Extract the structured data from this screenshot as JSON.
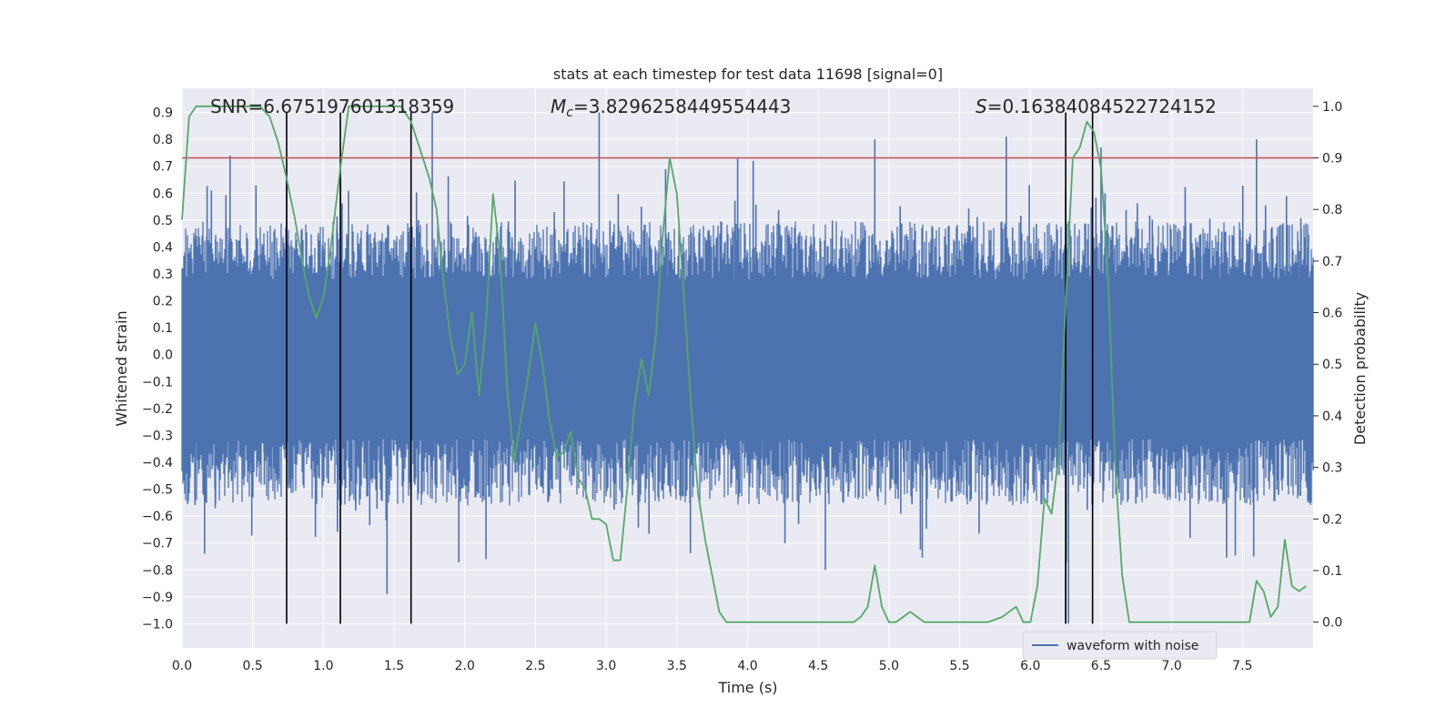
{
  "chart_data": {
    "type": "line",
    "title": "stats at each timestep for test data 11698 [signal=0]",
    "xlabel": "Time (s)",
    "ylabel": "Whitened strain",
    "y2label": "Detection probability",
    "xlim": [
      0.0,
      8.0
    ],
    "ylim": [
      -1.09,
      0.99
    ],
    "y2lim": [
      -0.05,
      1.035
    ],
    "xticks": [
      "0.0",
      "0.5",
      "1.0",
      "1.5",
      "2.0",
      "2.5",
      "3.0",
      "3.5",
      "4.0",
      "4.5",
      "5.0",
      "5.5",
      "6.0",
      "6.5",
      "7.0",
      "7.5"
    ],
    "yticks": [
      "0.9",
      "0.8",
      "0.7",
      "0.6",
      "0.5",
      "0.4",
      "0.3",
      "0.2",
      "0.1",
      "0.0",
      "−0.1",
      "−0.2",
      "−0.3",
      "−0.4",
      "−0.5",
      "−0.6",
      "−0.7",
      "−0.8",
      "−0.9",
      "−1.0"
    ],
    "y2ticks": [
      "1.0",
      "0.9",
      "0.8",
      "0.7",
      "0.6",
      "0.5",
      "0.4",
      "0.3",
      "0.2",
      "0.1",
      "0.0"
    ],
    "grid": true,
    "legend": {
      "placement": "lower-right",
      "entries": [
        "waveform with noise"
      ]
    },
    "annotations": {
      "snr": "SNR=6.675197601318359",
      "mc_symbol": "M",
      "mc_sub": "c",
      "mc_value": "=3.8296258449554443",
      "s_symbol": "S",
      "s_value": "=0.16384084522724152"
    },
    "threshold": {
      "value": 0.9,
      "axis": "y2",
      "color": "#c44e52"
    },
    "vertical_lines": [
      0.74,
      1.12,
      1.62,
      6.25,
      6.44
    ],
    "horizontal_white_lines": [
      0.7,
      0.6,
      0.5,
      0.4
    ],
    "series": [
      {
        "name": "waveform with noise",
        "axis": "y",
        "color": "#4c72b0",
        "noise_envelope": {
          "typical": 0.33,
          "max_positive": 0.9,
          "min_negative": -1.0
        },
        "peaks": [
          [
            0.34,
            0.74
          ],
          [
            0.74,
            0.65
          ],
          [
            1.62,
            0.9
          ],
          [
            1.77,
            0.9
          ],
          [
            2.95,
            0.9
          ],
          [
            3.42,
            0.69
          ],
          [
            3.93,
            0.73
          ],
          [
            4.04,
            0.72
          ],
          [
            4.9,
            0.8
          ],
          [
            5.83,
            0.81
          ],
          [
            6.5,
            0.77
          ],
          [
            7.6,
            0.8
          ],
          [
            1.45,
            -0.89
          ],
          [
            6.25,
            -1.0
          ],
          [
            6.27,
            -1.0
          ],
          [
            7.58,
            -0.75
          ],
          [
            4.55,
            -0.8
          ],
          [
            2.15,
            -0.76
          ]
        ]
      },
      {
        "name": "",
        "axis": "y2",
        "color": "#55a868",
        "x": [
          0.0,
          0.05,
          0.1,
          0.2,
          0.4,
          0.55,
          0.62,
          0.68,
          0.74,
          0.8,
          0.85,
          0.9,
          0.95,
          1.0,
          1.05,
          1.12,
          1.18,
          1.3,
          1.45,
          1.55,
          1.62,
          1.68,
          1.75,
          1.8,
          1.85,
          1.9,
          1.95,
          2.0,
          2.05,
          2.1,
          2.15,
          2.2,
          2.25,
          2.3,
          2.35,
          2.4,
          2.45,
          2.5,
          2.55,
          2.6,
          2.65,
          2.7,
          2.75,
          2.8,
          2.85,
          2.9,
          2.95,
          3.0,
          3.05,
          3.1,
          3.15,
          3.2,
          3.25,
          3.3,
          3.35,
          3.4,
          3.45,
          3.5,
          3.55,
          3.6,
          3.65,
          3.7,
          3.75,
          3.8,
          3.85,
          3.9,
          4.0,
          4.1,
          4.2,
          4.3,
          4.4,
          4.5,
          4.6,
          4.7,
          4.75,
          4.8,
          4.85,
          4.9,
          4.95,
          5.0,
          5.05,
          5.1,
          5.15,
          5.2,
          5.25,
          5.3,
          5.4,
          5.5,
          5.6,
          5.7,
          5.8,
          5.85,
          5.9,
          5.95,
          6.0,
          6.05,
          6.1,
          6.15,
          6.2,
          6.25,
          6.3,
          6.35,
          6.4,
          6.45,
          6.5,
          6.55,
          6.6,
          6.65,
          6.7,
          6.8,
          6.9,
          7.0,
          7.1,
          7.2,
          7.3,
          7.4,
          7.5,
          7.55,
          7.6,
          7.65,
          7.7,
          7.75,
          7.8,
          7.85,
          7.9,
          7.95
        ],
        "y": [
          0.78,
          0.98,
          1.0,
          1.0,
          1.0,
          1.0,
          0.98,
          0.93,
          0.86,
          0.78,
          0.7,
          0.63,
          0.59,
          0.63,
          0.72,
          0.88,
          1.0,
          1.0,
          1.0,
          1.0,
          0.97,
          0.92,
          0.86,
          0.8,
          0.66,
          0.55,
          0.48,
          0.5,
          0.6,
          0.44,
          0.58,
          0.83,
          0.71,
          0.45,
          0.31,
          0.4,
          0.48,
          0.58,
          0.5,
          0.39,
          0.32,
          0.33,
          0.37,
          0.28,
          0.26,
          0.2,
          0.2,
          0.19,
          0.12,
          0.12,
          0.26,
          0.42,
          0.51,
          0.44,
          0.55,
          0.75,
          0.9,
          0.83,
          0.63,
          0.42,
          0.25,
          0.16,
          0.09,
          0.02,
          0.0,
          0.0,
          0.0,
          0.0,
          0.0,
          0.0,
          0.0,
          0.0,
          0.0,
          0.0,
          0.0,
          0.01,
          0.03,
          0.11,
          0.03,
          0.0,
          0.0,
          0.01,
          0.02,
          0.01,
          0.0,
          0.0,
          0.0,
          0.0,
          0.0,
          0.0,
          0.01,
          0.02,
          0.03,
          0.0,
          0.0,
          0.07,
          0.24,
          0.21,
          0.32,
          0.62,
          0.9,
          0.92,
          0.97,
          0.95,
          0.88,
          0.67,
          0.3,
          0.09,
          0.0,
          0.0,
          0.0,
          0.0,
          0.0,
          0.0,
          0.0,
          0.0,
          0.0,
          0.0,
          0.08,
          0.06,
          0.01,
          0.03,
          0.16,
          0.07,
          0.06,
          0.07
        ]
      }
    ]
  }
}
